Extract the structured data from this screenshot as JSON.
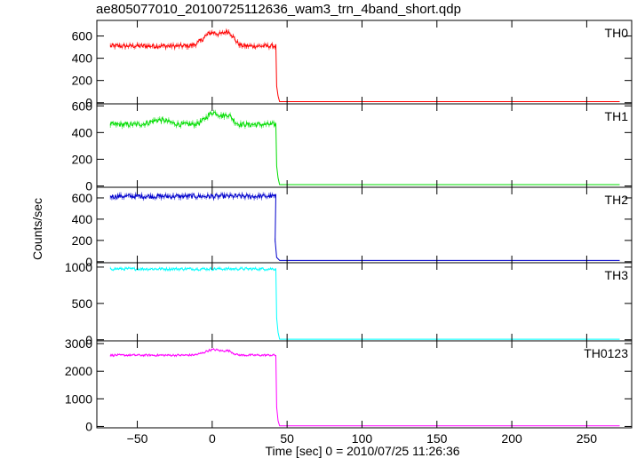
{
  "title": "ae805077010_20100725112636_wam3_trn_4band_short.qdp",
  "chart_data": {
    "type": "line",
    "xlabel": "Time [sec] 0 = 2010/07/25 11:26:36",
    "ylabel": "Counts/sec",
    "xlim": [
      -77,
      280
    ],
    "x_ticks": [
      -50,
      0,
      50,
      100,
      150,
      200,
      250
    ],
    "x_tick_labels": [
      "−50",
      "0",
      "50",
      "100",
      "150",
      "200",
      "250"
    ],
    "x_start": -68,
    "x_end": 272,
    "drop_time": 43,
    "panels": [
      {
        "name": "TH0",
        "color": "#ff0000",
        "ylim": [
          -10,
          740
        ],
        "y_ticks": [
          0,
          200,
          400,
          600
        ],
        "y_tick_labels": [
          "0",
          "200",
          "400",
          "600"
        ],
        "level_before": 510,
        "noise": 20,
        "bumps": [
          {
            "x": 0,
            "amp": 120,
            "width": 8
          },
          {
            "x": 11,
            "amp": 110,
            "width": 5
          }
        ],
        "transition": [
          [
            43,
            150
          ],
          [
            44,
            60
          ]
        ],
        "level_after": 10
      },
      {
        "name": "TH1",
        "color": "#00dd00",
        "ylim": [
          -10,
          615
        ],
        "y_ticks": [
          0,
          200,
          400,
          600
        ],
        "y_tick_labels": [
          "0",
          "200",
          "400",
          "600"
        ],
        "level_before": 460,
        "noise": 18,
        "bumps": [
          {
            "x": -35,
            "amp": 35,
            "width": 8
          },
          {
            "x": 1,
            "amp": 90,
            "width": 7
          },
          {
            "x": 11,
            "amp": 60,
            "width": 4
          }
        ],
        "transition": [
          [
            43,
            150
          ],
          [
            44,
            60
          ]
        ],
        "level_after": 10
      },
      {
        "name": "TH2",
        "color": "#0000cc",
        "ylim": [
          -10,
          700
        ],
        "y_ticks": [
          0,
          200,
          400,
          600
        ],
        "y_tick_labels": [
          "0",
          "200",
          "400",
          "600"
        ],
        "level_before": 615,
        "noise": 22,
        "bumps": [],
        "transition": [
          [
            42,
            200
          ],
          [
            43,
            40
          ]
        ],
        "level_after": 12
      },
      {
        "name": "TH3",
        "color": "#00ffff",
        "ylim": [
          -15,
          1060
        ],
        "y_ticks": [
          0,
          500,
          1000
        ],
        "y_tick_labels": [
          "0",
          "500",
          "1000"
        ],
        "level_before": 975,
        "noise": 18,
        "bumps": [],
        "transition": [
          [
            43,
            300
          ],
          [
            44,
            100
          ]
        ],
        "level_after": 8
      },
      {
        "name": "TH0123",
        "color": "#ff00ff",
        "ylim": [
          -50,
          3100
        ],
        "y_ticks": [
          0,
          1000,
          2000,
          3000
        ],
        "y_tick_labels": [
          "0",
          "1000",
          "2000",
          "3000"
        ],
        "level_before": 2580,
        "noise": 35,
        "bumps": [
          {
            "x": 1,
            "amp": 200,
            "width": 8
          },
          {
            "x": 11,
            "amp": 120,
            "width": 4
          }
        ],
        "transition": [
          [
            43,
            700
          ],
          [
            44,
            200
          ]
        ],
        "level_after": 25
      }
    ]
  }
}
